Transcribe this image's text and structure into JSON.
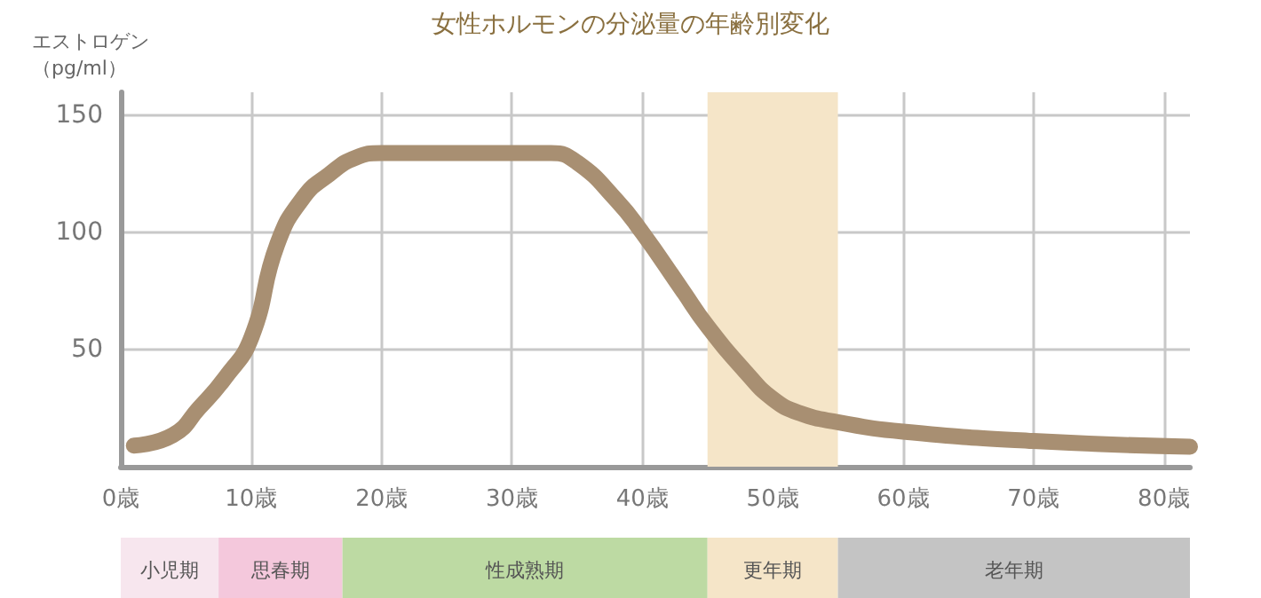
{
  "chart_data": [
    {
      "type": "line",
      "title": "女性ホルモンの分泌量の年齢別変化",
      "ylabel": "エストロゲン（pg/ml）",
      "x": [
        1,
        4,
        6,
        8,
        10,
        12,
        14,
        16,
        18,
        20,
        25,
        30,
        33,
        35,
        38,
        40,
        43,
        45,
        48,
        50,
        52,
        55,
        60,
        70,
        82
      ],
      "series": [
        {
          "color": "#a88f72",
          "values": [
            9,
            13.5,
            25,
            38,
            55,
            95,
            115,
            125,
            132,
            134,
            134,
            134,
            134,
            130,
            114,
            100,
            76,
            60,
            40,
            29,
            23,
            19,
            15,
            11,
            8.5
          ]
        }
      ],
      "xlim": [
        0,
        82
      ],
      "xticks": [
        {
          "value": 0,
          "label": "0歳"
        },
        {
          "value": 10,
          "label": "10歳"
        },
        {
          "value": 20,
          "label": "20歳"
        },
        {
          "value": 30,
          "label": "30歳"
        },
        {
          "value": 40,
          "label": "40歳"
        },
        {
          "value": 50,
          "label": "50歳"
        },
        {
          "value": 60,
          "label": "60歳"
        },
        {
          "value": 70,
          "label": "70歳"
        },
        {
          "value": 80,
          "label": "80歳"
        }
      ],
      "ylim": [
        0,
        160
      ],
      "yticks": [
        50,
        100,
        150
      ],
      "grid": true,
      "bands": [
        {
          "axis": "x",
          "from": 45,
          "to": 55,
          "color": "#f5e5c8"
        }
      ]
    },
    {
      "type": "bar",
      "orientation": "horizontal",
      "stacked": true,
      "categories": [
        null
      ],
      "xlim": [
        0,
        82
      ],
      "tick_labels": false,
      "series": [
        {
          "name": "小児期",
          "color": "#f7e6ee",
          "values": [
            7.5
          ]
        },
        {
          "name": "思春期",
          "color": "#f4c8dc",
          "values": [
            9.5
          ]
        },
        {
          "name": "性成熟期",
          "color": "#bddaa3",
          "values": [
            28
          ]
        },
        {
          "name": "更年期",
          "color": "#f5e5c8",
          "values": [
            10
          ]
        },
        {
          "name": "老年期",
          "color": "#c4c4c4",
          "values": [
            27
          ]
        }
      ]
    }
  ]
}
